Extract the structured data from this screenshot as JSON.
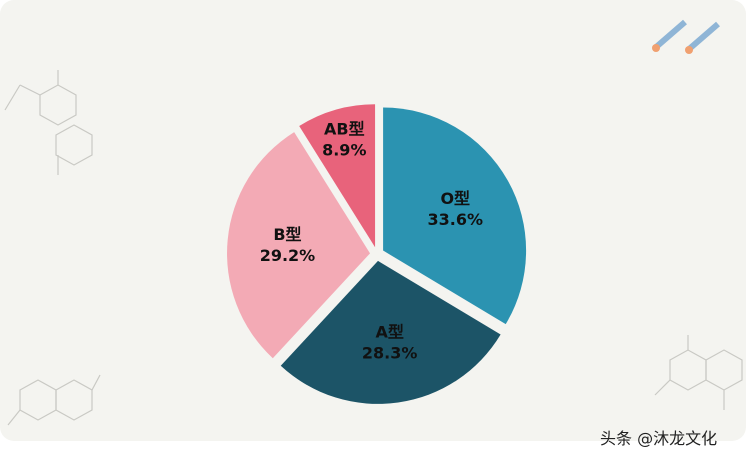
{
  "chart_data": {
    "type": "pie",
    "categories": [
      "O型",
      "A型",
      "B型",
      "AB型"
    ],
    "values": [
      33.6,
      28.3,
      29.2,
      8.9
    ],
    "value_labels": [
      "33.6%",
      "28.3%",
      "29.2%",
      "8.9%"
    ],
    "colors": [
      "#2b93b1",
      "#1c5467",
      "#f3aab5",
      "#e8637b"
    ]
  },
  "watermark": "头条 @沐龙文化"
}
